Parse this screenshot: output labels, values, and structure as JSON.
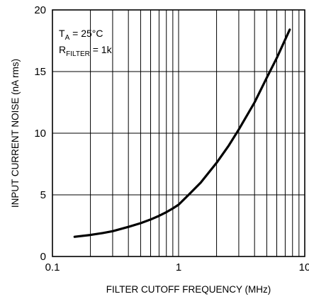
{
  "chart_data": {
    "type": "line",
    "xlabel": "FILTER CUTOFF FREQUENCY (MHz)",
    "ylabel": "INPUT CURRENT NOISE (nA rms)",
    "x_scale": "log",
    "xlim": [
      0.1,
      10
    ],
    "ylim": [
      0,
      20
    ],
    "x_ticks": [
      {
        "value": 0.1,
        "label": "0.1"
      },
      {
        "value": 1,
        "label": "1"
      },
      {
        "value": 10,
        "label": "10"
      }
    ],
    "y_ticks": [
      {
        "value": 0,
        "label": "0"
      },
      {
        "value": 5,
        "label": "5"
      },
      {
        "value": 10,
        "label": "10"
      },
      {
        "value": 15,
        "label": "15"
      },
      {
        "value": 20,
        "label": "20"
      }
    ],
    "grid": true,
    "annotations": [
      {
        "main": "T",
        "sub": "A",
        "rest": " = 25°C"
      },
      {
        "main": "R",
        "sub": "FILTER",
        "rest": " = 1k"
      }
    ],
    "series": [
      {
        "x": [
          0.15,
          0.2,
          0.25,
          0.3,
          0.4,
          0.5,
          0.6,
          0.7,
          0.8,
          0.9,
          1.0,
          1.2,
          1.5,
          2.0,
          2.5,
          3.0,
          4.0,
          5.0,
          6.0,
          7.0,
          7.6
        ],
        "y": [
          1.6,
          1.75,
          1.9,
          2.05,
          2.4,
          2.7,
          3.0,
          3.3,
          3.6,
          3.9,
          4.2,
          5.0,
          6.0,
          7.6,
          9.0,
          10.3,
          12.5,
          14.5,
          16.1,
          17.6,
          18.4
        ]
      }
    ]
  }
}
